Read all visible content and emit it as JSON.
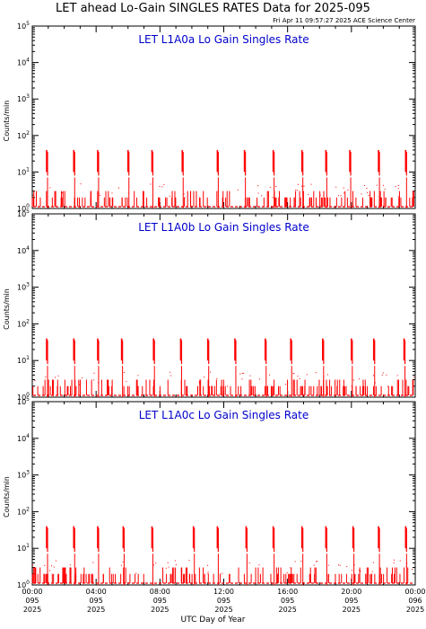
{
  "header": {
    "title": "LET ahead Lo-Gain SINGLES RATES Data for 2025-095",
    "timestamp": "Fri Apr 11 09:57:27 2025 ACE Science Center"
  },
  "xaxis_label": "UTC Day of Year",
  "colors": {
    "data": "#ff0000",
    "panel_title": "#0000cc",
    "axis": "#000000"
  },
  "chart_data": [
    {
      "type": "scatter",
      "title": "LET L1A0a Lo Gain Singles Rate",
      "ylabel": "Counts/min",
      "yscale": "log",
      "ylim": [
        1,
        100000
      ],
      "xlim": [
        0,
        24
      ],
      "spike_hours": [
        0.9,
        2.6,
        4.1,
        6.0,
        7.5,
        9.4,
        11.6,
        13.3,
        15.1,
        16.9,
        18.4,
        19.9,
        21.7,
        23.4
      ],
      "spike_peak": 40,
      "baseline_counts": [
        1,
        2
      ]
    },
    {
      "type": "scatter",
      "title": "LET L1A0b Lo Gain Singles Rate",
      "ylabel": "Counts/min",
      "yscale": "log",
      "ylim": [
        1,
        100000
      ],
      "xlim": [
        0,
        24
      ],
      "spike_hours": [
        0.9,
        2.6,
        4.1,
        5.6,
        7.6,
        9.3,
        11.0,
        12.7,
        14.6,
        16.2,
        18.2,
        20.0,
        21.4,
        23.3
      ],
      "spike_peak": 40,
      "baseline_counts": [
        1,
        2
      ]
    },
    {
      "type": "scatter",
      "title": "LET L1A0c Lo Gain Singles Rate",
      "ylabel": "Counts/min",
      "yscale": "log",
      "ylim": [
        1,
        100000
      ],
      "xlim": [
        0,
        24
      ],
      "spike_hours": [
        0.9,
        2.6,
        4.1,
        5.7,
        7.5,
        10.1,
        11.6,
        13.4,
        15.1,
        16.9,
        18.4,
        20.1,
        21.7,
        23.4
      ],
      "spike_peak": 40,
      "baseline_counts": [
        1,
        2
      ]
    }
  ],
  "xaxis_ticks": [
    {
      "hour": 0,
      "time": "00:00",
      "doy": "095",
      "year": "2025"
    },
    {
      "hour": 4,
      "time": "04:00",
      "doy": "095",
      "year": "2025"
    },
    {
      "hour": 8,
      "time": "08:00",
      "doy": "095",
      "year": "2025"
    },
    {
      "hour": 12,
      "time": "12:00",
      "doy": "095",
      "year": "2025"
    },
    {
      "hour": 16,
      "time": "16:00",
      "doy": "095",
      "year": "2025"
    },
    {
      "hour": 20,
      "time": "20:00",
      "doy": "095",
      "year": "2025"
    },
    {
      "hour": 24,
      "time": "00:00",
      "doy": "096",
      "year": "2025"
    }
  ],
  "ytick_base": "10",
  "ytick_exponents": [
    "0",
    "1",
    "2",
    "3",
    "4",
    "5"
  ]
}
